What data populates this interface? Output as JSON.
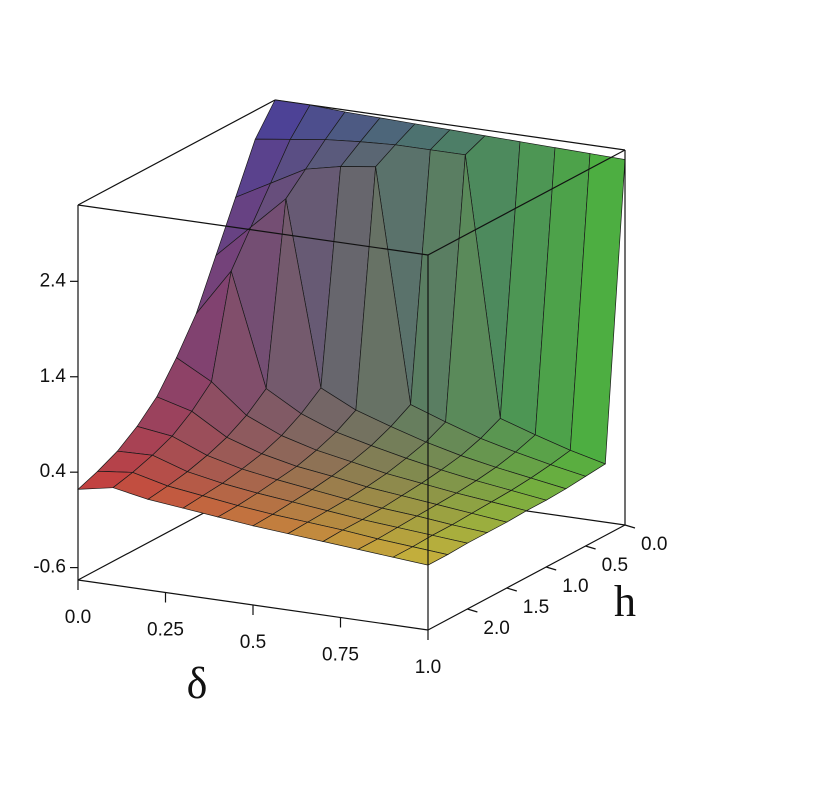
{
  "chart_data": {
    "type": "surface",
    "x_label": "δ",
    "y_label": "h",
    "x": [
      0,
      0.1,
      0.2,
      0.3,
      0.4,
      0.5,
      0.6,
      0.7,
      0.8,
      0.9,
      1
    ],
    "y": [
      0,
      0.25,
      0.5,
      0.75,
      1,
      1.25,
      1.5,
      1.75,
      2,
      2.25,
      2.5
    ],
    "z": [
      [
        3.2,
        3.2,
        3.18,
        3.17,
        3.16,
        3.15,
        3.14,
        3.13,
        3.12,
        3.11,
        3.1
      ],
      [
        2.9,
        2.95,
        3.0,
        3.03,
        3.05,
        3.05,
        3.05,
        0.34,
        0.22,
        0.11,
        0.02
      ],
      [
        2.4,
        2.6,
        2.8,
        2.88,
        2.93,
        0.49,
        0.36,
        0.24,
        0.15,
        0.07,
        0
      ],
      [
        1.9,
        2.25,
        2.6,
        0.67,
        0.49,
        0.37,
        0.26,
        0.17,
        0.1,
        0.04,
        -0.02
      ],
      [
        1.4,
        1.9,
        0.72,
        0.51,
        0.37,
        0.28,
        0.2,
        0.13,
        0.07,
        0.02,
        -0.03
      ],
      [
        1.05,
        0.85,
        0.55,
        0.39,
        0.29,
        0.22,
        0.15,
        0.1,
        0.05,
        0.01,
        -0.03
      ],
      [
        0.75,
        0.65,
        0.43,
        0.31,
        0.23,
        0.18,
        0.12,
        0.08,
        0.04,
        0,
        -0.04
      ],
      [
        0.55,
        0.5,
        0.35,
        0.26,
        0.2,
        0.15,
        0.1,
        0.06,
        0.03,
        -0.01,
        -0.04
      ],
      [
        0.4,
        0.41,
        0.29,
        0.22,
        0.17,
        0.13,
        0.09,
        0.05,
        0.02,
        -0.01,
        -0.04
      ],
      [
        0.3,
        0.34,
        0.25,
        0.2,
        0.15,
        0.11,
        0.08,
        0.05,
        0.01,
        -0.02,
        -0.05
      ],
      [
        0.22,
        0.29,
        0.22,
        0.18,
        0.14,
        0.1,
        0.07,
        0.04,
        0.01,
        -0.02,
        -0.05
      ]
    ],
    "xlim": [
      0,
      1
    ],
    "ylim": [
      0,
      2.5
    ],
    "zlim": [
      -0.73,
      3.2
    ],
    "xticks": [
      {
        "value": 0,
        "label": "0.0"
      },
      0.25,
      0.5,
      0.75,
      {
        "value": 1,
        "label": "1.0"
      }
    ],
    "yticks": [
      {
        "value": 0,
        "label": "0.0"
      },
      0.5,
      {
        "value": 1,
        "label": "1.0"
      },
      1.5,
      {
        "value": 2,
        "label": "2.0"
      }
    ],
    "zticks": [
      -0.6,
      0.4,
      1.4,
      2.4
    ]
  }
}
